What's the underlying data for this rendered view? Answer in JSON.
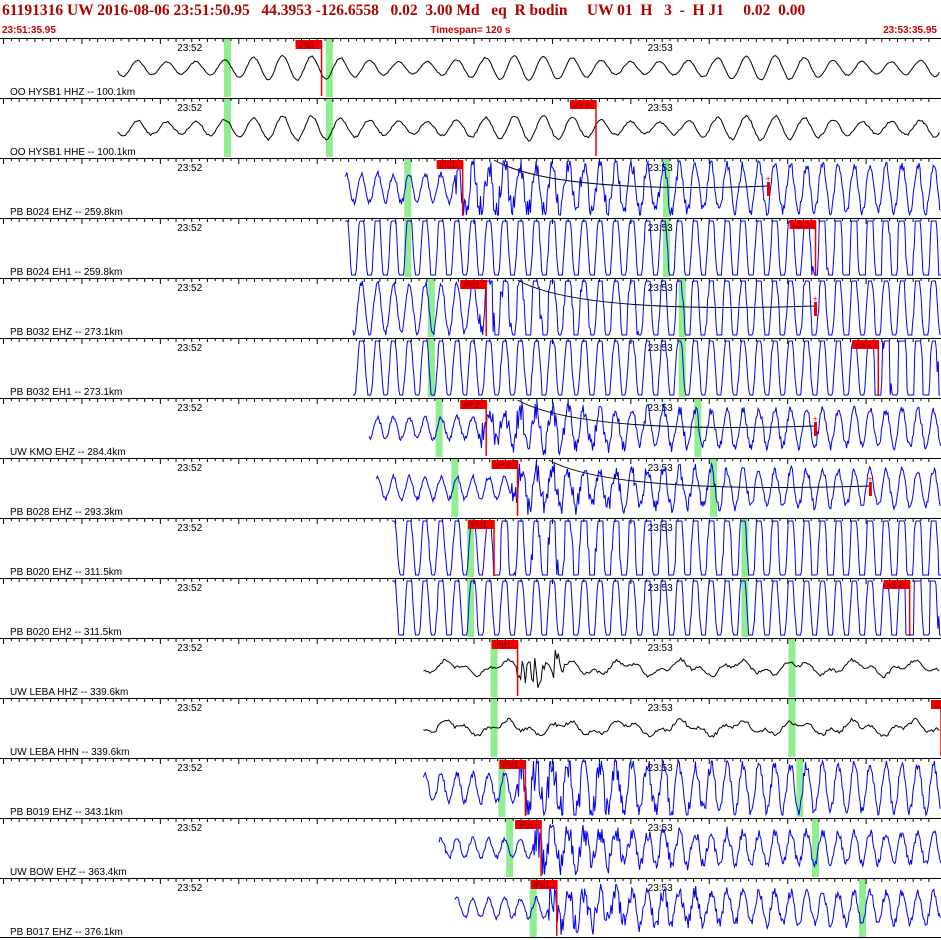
{
  "header": {
    "title": "61191316 UW 2016-08-06 23:51:50.95   44.3953 -126.6558   0.02  3.00 Md   eq  R bodin     UW 01  H   3  -  H J1     0.02  0.00",
    "start_time": "23:51:35.95",
    "timespan": "Timespan= 120 s",
    "end_time": "23:53:35.95"
  },
  "colors": {
    "trace_blue": "#0000ee",
    "trace_black": "#000000",
    "pick_red": "#ee0000",
    "window_green": "#90ee90",
    "header_red": "#c00000"
  },
  "chart_data": {
    "type": "line",
    "title": "61191316 UW 2016-08-06 23:51:50.95",
    "xlabel": "",
    "ylabel": "",
    "time_ticks": [
      "23:52",
      "23:53"
    ],
    "xlim": [
      0,
      120
    ],
    "traces": [
      {
        "label": "OO HYSB1 HHZ -- 100.1km",
        "color": "black",
        "kind": "long",
        "start": 15,
        "end": 120,
        "amp": 0.55,
        "noise": 0.06,
        "pick": {
          "label": "iPd1",
          "t": 41,
          "dir": "down"
        },
        "windows": [
          29,
          42
        ],
        "tail": false
      },
      {
        "label": "OO HYSB1 HHE -- 100.1km",
        "color": "black",
        "kind": "long",
        "start": 15,
        "end": 120,
        "amp": 0.55,
        "noise": 0.1,
        "pick": {
          "label": "eS 2",
          "t": 76,
          "dir": "down"
        },
        "windows": [
          29,
          42
        ],
        "tail": false
      },
      {
        "label": "PB B024 EHZ -- 259.8km",
        "color": "blue",
        "kind": "short",
        "start": 44,
        "end": 120,
        "amp": 0.18,
        "noise": 0.28,
        "pick": {
          "label": "iPd1",
          "t": 59,
          "dir": "down"
        },
        "windows": [
          52,
          85
        ],
        "tail": true,
        "tail_end": 98
      },
      {
        "label": "PB B024 EH1 -- 259.8km",
        "color": "blue",
        "kind": "short",
        "start": 44,
        "end": 120,
        "amp": 0.55,
        "noise": 0.35,
        "pick": {
          "label": "eS 2",
          "t": 104,
          "dir": "up"
        },
        "windows": [
          52,
          85
        ],
        "tail": false
      },
      {
        "label": "PB B032 EHZ -- 273.1km",
        "color": "blue",
        "kind": "short",
        "start": 45,
        "end": 120,
        "amp": 0.32,
        "noise": 0.32,
        "pick": {
          "label": "iPd1",
          "t": 62,
          "dir": "down"
        },
        "windows": [
          55,
          87
        ],
        "tail": true,
        "tail_end": 104
      },
      {
        "label": "PB B032 EH1 -- 273.1km",
        "color": "blue",
        "kind": "short",
        "start": 45,
        "end": 120,
        "amp": 0.48,
        "noise": 0.42,
        "pick": {
          "label": "eS 2",
          "t": 112,
          "dir": "up"
        },
        "windows": [
          55,
          87
        ],
        "tail": false
      },
      {
        "label": "UW KMO EHZ -- 284.4km",
        "color": "blue",
        "kind": "short",
        "start": 47,
        "end": 120,
        "amp": 0.14,
        "noise": 0.22,
        "pick": {
          "label": "eP 2",
          "t": 62,
          "dir": "up"
        },
        "windows": [
          56,
          89
        ],
        "tail": true,
        "tail_end": 104
      },
      {
        "label": "PB B028 EHZ -- 293.3km",
        "color": "blue",
        "kind": "short",
        "start": 48,
        "end": 120,
        "amp": 0.14,
        "noise": 0.22,
        "pick": {
          "label": "eP 2",
          "t": 66,
          "dir": "up"
        },
        "windows": [
          58,
          91
        ],
        "tail": true,
        "tail_end": 111
      },
      {
        "label": "PB B020 EHZ -- 311.5km",
        "color": "blue",
        "kind": "short",
        "start": 50,
        "end": 120,
        "amp": 0.45,
        "noise": 0.42,
        "pick": {
          "label": "iPd1",
          "t": 63,
          "dir": "down"
        },
        "windows": [
          60,
          95
        ],
        "tail": false
      },
      {
        "label": "PB B020 EH2 -- 311.5km",
        "color": "blue",
        "kind": "short",
        "start": 50,
        "end": 120,
        "amp": 0.55,
        "noise": 0.42,
        "pick": {
          "label": "eS 2",
          "t": 116,
          "dir": "up"
        },
        "windows": [
          60,
          95
        ],
        "tail": false
      },
      {
        "label": "UW LEBA HHZ -- 339.6km",
        "color": "black",
        "kind": "medium",
        "start": 54,
        "end": 120,
        "amp": 0.4,
        "noise": 0.1,
        "pick": {
          "label": "iPd1",
          "t": 66,
          "dir": "down"
        },
        "windows": [
          63,
          101
        ],
        "tail": false
      },
      {
        "label": "UW LEBA HHN -- 339.6km",
        "color": "black",
        "kind": "medium",
        "start": 54,
        "end": 120,
        "amp": 0.4,
        "noise": 0.12,
        "pick": {
          "label": "S",
          "t": 120,
          "dir": "up"
        },
        "windows": [
          63,
          101
        ],
        "tail": false
      },
      {
        "label": "PB B019 EHZ -- 343.1km",
        "color": "blue",
        "kind": "short",
        "start": 54,
        "end": 120,
        "amp": 0.18,
        "noise": 0.3,
        "pick": {
          "label": "iPd1",
          "t": 67,
          "dir": "down"
        },
        "windows": [
          64,
          102
        ],
        "tail": false
      },
      {
        "label": "UW BOW EHZ -- 363.4km",
        "color": "blue",
        "kind": "short",
        "start": 56,
        "end": 120,
        "amp": 0.12,
        "noise": 0.22,
        "pick": {
          "label": "iPd1",
          "t": 69,
          "dir": "down"
        },
        "windows": [
          65,
          104
        ],
        "tail": false
      },
      {
        "label": "PB B017 EHZ -- 376.1km",
        "color": "blue",
        "kind": "short",
        "start": 58,
        "end": 120,
        "amp": 0.12,
        "noise": 0.22,
        "pick": {
          "label": "iPd1",
          "t": 71,
          "dir": "down"
        },
        "windows": [
          68,
          110
        ],
        "tail": false
      }
    ]
  }
}
